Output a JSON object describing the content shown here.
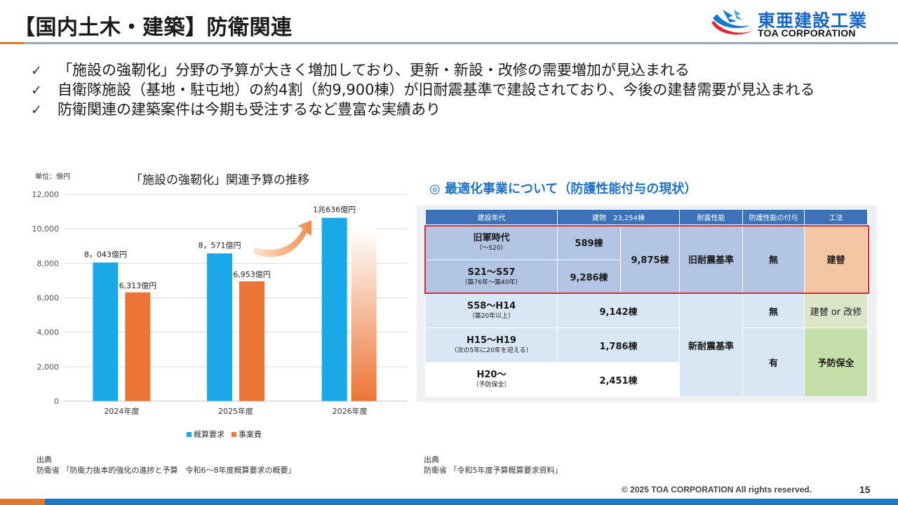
{
  "header": {
    "title": "【国内土木・建築】防衛関連",
    "logo_jp": "東亜建設工業",
    "logo_en": "TOA CORPORATION"
  },
  "bullets": [
    "「施設の強靭化」分野の予算が大きく増加しており、更新・新設・改修の需要増加が見込まれる",
    "自衛隊施設（基地・駐屯地）の約4割（約9,900棟）が旧耐震基準で建設されており、今後の建替需要が見込まれる",
    "防衛関連の建築案件は今期も受注するなど豊富な実績あり"
  ],
  "check_mark": "✓",
  "chart_data": {
    "type": "bar",
    "title": "「施設の強靭化」関連予算の推移",
    "unit_label": "単位：億円",
    "categories": [
      "2024年度",
      "2025年度",
      "2026年度"
    ],
    "series": [
      {
        "name": "概算要求",
        "color": "#19a9e8",
        "values": [
          8043,
          8571,
          10636
        ],
        "labels": [
          "8，043億円",
          "8，571億円",
          "1兆636億円"
        ]
      },
      {
        "name": "事業費",
        "color": "#ec7434",
        "values": [
          6313,
          6953,
          null
        ],
        "labels": [
          "6,313億円",
          "6,953億円",
          ""
        ]
      }
    ],
    "ylim": [
      0,
      12000
    ],
    "yticks": [
      "0",
      "2,000",
      "4,000",
      "6,000",
      "8,000",
      "10,000",
      "12,000"
    ],
    "grid": true,
    "legend_position": "bottom"
  },
  "source_left": {
    "label": "出典",
    "text": "防衛省 「防衛力抜本的強化の進捗と予算　令和6～8年度概算要求の概要」"
  },
  "table": {
    "section_title": "◎ 最適化事業について（防護性能付与の現状）",
    "headers": [
      "建設年代",
      "建物　23,254棟",
      "耐震性能",
      "防護性能の付与",
      "工法"
    ],
    "rows": [
      {
        "era": "旧軍時代",
        "era_sub": "（～S20）",
        "count": "589棟"
      },
      {
        "era": "S21～S57",
        "era_sub": "（築76年～築40年）",
        "count": "9,286棟"
      },
      {
        "era": "S58～H14",
        "era_sub": "（築20年以上）",
        "count": "9,142棟"
      },
      {
        "era": "H15～H19",
        "era_sub": "（次の5年に20年を迎える）",
        "count": "1,786棟"
      },
      {
        "era": "H20～",
        "era_sub": "（予防保全）",
        "count": "2,451棟"
      }
    ],
    "old_subtotal": "9,875棟",
    "old_seismic": "旧耐震基準",
    "new_seismic": "新耐震基準",
    "protection_none_old": "無",
    "protection_none_new": "無",
    "protection_yes": "有",
    "method_rebuild": "建替",
    "method_either": "建替 or 改修",
    "method_maint": "予防保全"
  },
  "source_right": {
    "label": "出典",
    "text": "防衛省 「令和5年度予算概算要求資料」"
  },
  "footer": {
    "copyright": "© 2025 TOA CORPORATION  All rights reserved.",
    "page_number": "15"
  },
  "colors": {
    "accent_orange": "#e8772e",
    "brand_blue": "#1679c9",
    "table_header": "#3d72b8",
    "highlight_red": "#e3262f"
  }
}
